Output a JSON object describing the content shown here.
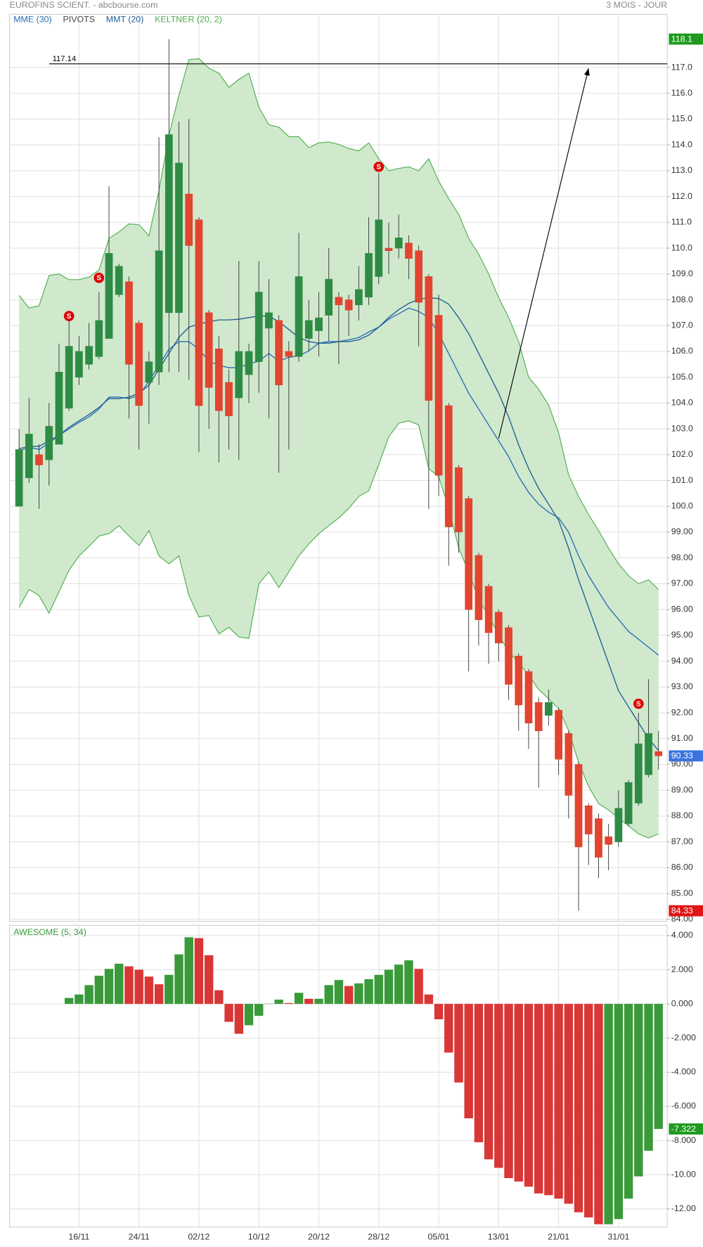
{
  "chart_data": [
    {
      "type": "candlestick",
      "title": "EUROFINS SCIENT. - abcbourse.com",
      "subtitle": "3 MOIS - JOUR",
      "open": [
        100.0,
        101.1,
        102.0,
        101.8,
        102.4,
        103.8,
        105.0,
        105.5,
        105.8,
        106.5,
        108.2,
        108.7,
        107.1,
        104.8,
        105.2,
        107.5,
        107.5,
        112.1,
        111.1,
        107.5,
        106.1,
        104.8,
        104.2,
        105.1,
        105.6,
        106.9,
        107.2,
        106.0,
        105.8,
        106.5,
        106.8,
        107.4,
        108.1,
        108.0,
        107.8,
        108.1,
        108.9,
        110.0,
        110.0,
        110.2,
        109.9,
        108.9,
        107.4,
        103.9,
        101.5,
        100.3,
        98.1,
        96.9,
        95.9,
        95.3,
        94.2,
        93.6,
        92.4,
        91.9,
        92.1,
        91.2,
        90.0,
        88.4,
        87.9,
        87.2,
        87.0,
        87.7,
        88.5,
        89.6,
        90.5
      ],
      "high": [
        103.0,
        104.2,
        102.4,
        104.0,
        106.3,
        107.3,
        106.6,
        107.1,
        108.3,
        112.4,
        109.4,
        108.9,
        107.2,
        106.0,
        114.3,
        118.1,
        114.9,
        115.0,
        111.2,
        107.6,
        106.6,
        105.3,
        109.5,
        106.3,
        109.5,
        108.8,
        107.4,
        106.4,
        110.6,
        108.0,
        108.3,
        110.0,
        108.3,
        108.2,
        109.3,
        111.2,
        112.9,
        111.0,
        111.3,
        110.5,
        110.1,
        109.0,
        108.2,
        104.0,
        101.6,
        100.4,
        98.2,
        97.0,
        96.0,
        95.4,
        94.3,
        93.7,
        92.6,
        92.9,
        92.2,
        91.3,
        90.1,
        88.5,
        88.1,
        87.7,
        89.0,
        89.4,
        92.0,
        93.3,
        91.3
      ],
      "low": [
        100.0,
        100.9,
        99.9,
        100.8,
        102.4,
        103.7,
        104.7,
        105.3,
        105.7,
        106.5,
        108.1,
        103.4,
        102.2,
        103.2,
        104.7,
        105.2,
        105.2,
        104.9,
        102.1,
        103.0,
        101.7,
        102.2,
        101.8,
        104.0,
        104.4,
        103.4,
        101.3,
        102.2,
        105.6,
        106.0,
        105.8,
        106.4,
        105.5,
        106.6,
        107.2,
        107.8,
        108.6,
        109.0,
        109.6,
        108.8,
        106.2,
        99.9,
        100.4,
        97.7,
        98.2,
        93.6,
        94.6,
        93.9,
        94.0,
        92.5,
        91.3,
        90.6,
        89.1,
        91.5,
        89.6,
        87.9,
        84.33,
        86.1,
        85.6,
        85.9,
        86.8,
        87.6,
        88.4,
        89.5,
        89.8
      ],
      "close": [
        102.2,
        102.8,
        101.6,
        103.1,
        105.2,
        106.2,
        106.0,
        106.2,
        107.2,
        109.8,
        109.3,
        105.5,
        103.9,
        105.6,
        109.9,
        114.4,
        113.3,
        110.1,
        103.9,
        104.6,
        103.7,
        103.5,
        106.0,
        106.0,
        108.3,
        107.5,
        104.7,
        105.8,
        108.9,
        107.2,
        107.3,
        108.8,
        107.8,
        107.6,
        108.4,
        109.8,
        111.1,
        109.9,
        110.4,
        109.6,
        107.9,
        104.1,
        101.2,
        99.2,
        99.0,
        96.0,
        95.6,
        95.1,
        94.7,
        93.1,
        92.3,
        91.6,
        91.3,
        92.4,
        90.2,
        88.8,
        86.8,
        87.3,
        86.4,
        86.9,
        88.3,
        89.3,
        90.8,
        91.2,
        90.33
      ],
      "up_color": "#2e8b45",
      "down_color": "#e2452f",
      "series": [
        {
          "name": "MME (30)",
          "color": "#2a6db3",
          "values": [
            102.14,
            102.29,
            102.2,
            102.45,
            102.75,
            103.0,
            103.25,
            103.46,
            103.77,
            104.23,
            104.23,
            104.17,
            104.29,
            104.85,
            105.46,
            106.08,
            106.38,
            106.38,
            106.08,
            105.62,
            105.46,
            105.37,
            105.37,
            105.52,
            105.62,
            105.92,
            105.62,
            105.77,
            105.83,
            106.02,
            106.32,
            106.38,
            106.38,
            106.45,
            106.54,
            106.75,
            106.94,
            107.25,
            107.46,
            107.68,
            107.55,
            107.31,
            106.69,
            105.92,
            105.15,
            104.38,
            103.77,
            103.15,
            102.54,
            101.92,
            101.15,
            100.54,
            100.08,
            99.77,
            99.55,
            99.0,
            98.08,
            97.31,
            96.69,
            96.08,
            95.62,
            95.15,
            94.85,
            94.54,
            94.23
          ]
        },
        {
          "name": "PIVOTS",
          "color": "#444444"
        },
        {
          "name": "MMT (20)",
          "color": "#1f5f93",
          "values": [
            102.23,
            102.32,
            102.32,
            102.54,
            102.75,
            103.06,
            103.31,
            103.55,
            103.83,
            104.17,
            104.17,
            104.23,
            104.38,
            104.69,
            105.31,
            105.92,
            106.54,
            106.94,
            107.06,
            107.15,
            107.22,
            107.22,
            107.25,
            107.31,
            107.37,
            107.37,
            107.15,
            106.85,
            106.54,
            106.38,
            106.32,
            106.32,
            106.38,
            106.38,
            106.45,
            106.63,
            106.94,
            107.31,
            107.62,
            107.86,
            108.02,
            108.08,
            108.05,
            107.83,
            107.31,
            106.69,
            105.92,
            105.15,
            104.38,
            103.46,
            102.38,
            101.46,
            100.69,
            100.08,
            99.46,
            98.38,
            97.15,
            96.08,
            95.0,
            93.92,
            92.85,
            92.23,
            91.62,
            91.0,
            90.54
          ]
        },
        {
          "name": "KELTNER (20, 2)",
          "color": "#4cae4c",
          "fill": "#cde8ca",
          "upper": [
            108.17,
            107.68,
            107.77,
            108.94,
            109.0,
            108.78,
            108.78,
            108.88,
            109.15,
            110.38,
            110.63,
            110.94,
            110.91,
            110.48,
            112.23,
            114.38,
            115.92,
            117.31,
            117.34,
            116.97,
            116.78,
            116.23,
            116.54,
            116.78,
            115.46,
            114.78,
            114.69,
            114.32,
            114.32,
            113.89,
            114.08,
            114.11,
            114.02,
            113.86,
            113.77,
            114.08,
            113.46,
            113.0,
            113.09,
            113.15,
            113.0,
            113.46,
            112.6,
            111.92,
            111.31,
            110.38,
            109.77,
            109.0,
            108.08,
            107.31,
            106.38,
            105.0,
            104.54,
            103.92,
            102.85,
            101.22,
            100.38,
            99.68,
            99.06,
            98.38,
            97.77,
            97.31,
            97.0,
            97.15,
            96.78
          ],
          "lower": [
            96.08,
            96.78,
            96.54,
            95.86,
            96.69,
            97.52,
            98.08,
            98.45,
            98.85,
            98.94,
            99.25,
            98.85,
            98.48,
            99.06,
            98.08,
            97.77,
            98.08,
            96.54,
            95.71,
            95.77,
            95.06,
            95.31,
            94.94,
            94.88,
            97.0,
            97.46,
            96.85,
            97.46,
            98.08,
            98.54,
            98.94,
            99.25,
            99.55,
            99.92,
            100.38,
            100.6,
            101.62,
            102.69,
            103.22,
            103.31,
            103.15,
            101.46,
            101.15,
            99.92,
            98.38,
            97.46,
            96.38,
            95.77,
            95.0,
            94.38,
            93.92,
            93.46,
            92.91,
            92.54,
            92.17,
            91.31,
            90.08,
            89.15,
            88.48,
            88.23,
            87.92,
            87.62,
            87.31,
            87.15,
            87.31
          ]
        }
      ],
      "hline": 117.14,
      "arrow": {
        "from_index": 48,
        "from_value": 102.63,
        "to_index": 57,
        "to_value": 116.97
      },
      "signals": {
        "label": "S",
        "color": "#dd0000",
        "index": [
          5,
          8,
          36,
          62
        ],
        "values": [
          107.37,
          108.85,
          113.15,
          92.35
        ]
      },
      "badge_colors": {
        "high": "#1e9a1e",
        "last": "#3b73e0",
        "low": "#e01515"
      },
      "ylim": [
        83.92,
        119.06
      ],
      "yticks": [
        {
          "value": 84,
          "label": "84.00"
        },
        {
          "value": 85,
          "label": "85.00"
        },
        {
          "value": 86,
          "label": "86.00"
        },
        {
          "value": 87,
          "label": "87.00"
        },
        {
          "value": 88,
          "label": "88.00"
        },
        {
          "value": 89,
          "label": "89.00"
        },
        {
          "value": 90,
          "label": "90.00"
        },
        {
          "value": 91,
          "label": "91.00"
        },
        {
          "value": 92,
          "label": "92.00"
        },
        {
          "value": 93,
          "label": "93.00"
        },
        {
          "value": 94,
          "label": "94.00"
        },
        {
          "value": 95,
          "label": "95.00"
        },
        {
          "value": 96,
          "label": "96.00"
        },
        {
          "value": 97,
          "label": "97.00"
        },
        {
          "value": 98,
          "label": "98.00"
        },
        {
          "value": 99,
          "label": "99.00"
        },
        {
          "value": 100,
          "label": "100.0"
        },
        {
          "value": 101,
          "label": "101.0"
        },
        {
          "value": 102,
          "label": "102.0"
        },
        {
          "value": 103,
          "label": "103.0"
        },
        {
          "value": 104,
          "label": "104.0"
        },
        {
          "value": 105,
          "label": "105.0"
        },
        {
          "value": 106,
          "label": "106.0"
        },
        {
          "value": 107,
          "label": "107.0"
        },
        {
          "value": 108,
          "label": "108.0"
        },
        {
          "value": 109,
          "label": "109.0"
        },
        {
          "value": 110,
          "label": "110.0"
        },
        {
          "value": 111,
          "label": "111.0"
        },
        {
          "value": 112,
          "label": "112.0"
        },
        {
          "value": 113,
          "label": "113.0"
        },
        {
          "value": 114,
          "label": "114.0"
        },
        {
          "value": 115,
          "label": "115.0"
        },
        {
          "value": 116,
          "label": "116.0"
        },
        {
          "value": 117,
          "label": "117.0"
        }
      ],
      "grid": true
    },
    {
      "type": "bar",
      "title": "AWESOME (5, 34)",
      "categories": [
        null,
        null,
        null,
        null,
        null,
        null,
        "16/11",
        null,
        null,
        null,
        null,
        null,
        "24/11",
        null,
        null,
        null,
        null,
        null,
        "02/12",
        null,
        null,
        null,
        null,
        null,
        "10/12",
        null,
        null,
        null,
        null,
        null,
        "20/12",
        null,
        null,
        null,
        null,
        null,
        "28/12",
        null,
        null,
        null,
        null,
        null,
        "05/01",
        null,
        null,
        null,
        null,
        null,
        "13/01",
        null,
        null,
        null,
        null,
        null,
        "21/01",
        null,
        null,
        null,
        null,
        null,
        "31/01",
        null,
        null,
        null,
        null
      ],
      "values": [
        null,
        null,
        null,
        null,
        null,
        0.35,
        0.55,
        1.1,
        1.65,
        2.05,
        2.35,
        2.2,
        2.0,
        1.6,
        1.15,
        1.7,
        2.9,
        3.9,
        3.85,
        2.85,
        0.8,
        -1.05,
        -1.75,
        -1.25,
        -0.7,
        0.02,
        0.25,
        0.05,
        0.65,
        0.3,
        0.3,
        1.1,
        1.4,
        1.05,
        1.2,
        1.45,
        1.7,
        2.0,
        2.3,
        2.55,
        2.05,
        0.55,
        -0.9,
        -2.85,
        -4.6,
        -6.7,
        -8.1,
        -9.1,
        -9.6,
        -10.2,
        -10.4,
        -10.7,
        -11.1,
        -11.2,
        -11.4,
        -11.7,
        -12.2,
        -12.5,
        -12.9,
        -12.9,
        -12.6,
        -11.4,
        -10.1,
        -8.6,
        -7.322
      ],
      "up_color": "#3a9a3a",
      "down_color": "#d93636",
      "badge_color": "#1e9a1e",
      "ylim": [
        -13.07,
        4.6
      ],
      "yticks": [
        {
          "value": 4,
          "label": "4.000"
        },
        {
          "value": 2,
          "label": "2.000"
        },
        {
          "value": 0,
          "label": "0.000"
        },
        {
          "value": -2,
          "label": "-2.000"
        },
        {
          "value": -4,
          "label": "-4.000"
        },
        {
          "value": -6,
          "label": "-6.000"
        },
        {
          "value": -8,
          "label": "-8.000"
        },
        {
          "value": -10,
          "label": "-10.00"
        },
        {
          "value": -12,
          "label": "-12.00"
        }
      ],
      "grid": true
    }
  ]
}
